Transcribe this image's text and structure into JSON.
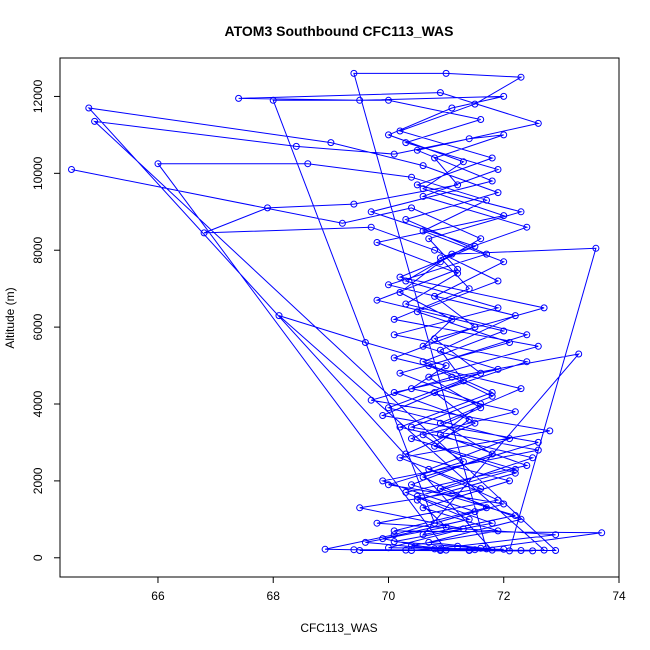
{
  "chart_data": {
    "type": "line",
    "title": "ATOM3 Southbound CFC113_WAS",
    "xlabel": "CFC113_WAS",
    "ylabel": "Altitude (m)",
    "xlim": [
      64.3,
      74.0
    ],
    "ylim": [
      -500,
      13000
    ],
    "xticks": [
      66,
      68,
      70,
      72,
      74
    ],
    "yticks": [
      0,
      2000,
      4000,
      6000,
      8000,
      10000,
      12000
    ],
    "series": [
      {
        "name": "Southbound profile",
        "color": "#0000ff",
        "marker": "open-circle",
        "points": [
          [
            64.5,
            10100
          ],
          [
            69.2,
            8700
          ],
          [
            70.4,
            9100
          ],
          [
            71.6,
            8300
          ],
          [
            70.9,
            7700
          ],
          [
            70.2,
            6900
          ],
          [
            71.1,
            6200
          ],
          [
            70.6,
            5500
          ],
          [
            71.9,
            4900
          ],
          [
            70.1,
            4300
          ],
          [
            71.4,
            3600
          ],
          [
            70.8,
            2900
          ],
          [
            72.2,
            2200
          ],
          [
            70.5,
            1500
          ],
          [
            71.0,
            800
          ],
          [
            69.6,
            400
          ],
          [
            70.9,
            220
          ],
          [
            72.3,
            190
          ],
          [
            71.4,
            200
          ],
          [
            69.4,
            210
          ],
          [
            68.9,
            220
          ],
          [
            70.1,
            600
          ],
          [
            71.5,
            1200
          ],
          [
            69.9,
            2000
          ],
          [
            72.6,
            2800
          ],
          [
            70.4,
            3400
          ],
          [
            71.8,
            4200
          ],
          [
            70.7,
            5000
          ],
          [
            72.4,
            5800
          ],
          [
            70.3,
            6600
          ],
          [
            71.2,
            7400
          ],
          [
            69.8,
            8200
          ],
          [
            72.0,
            8900
          ],
          [
            70.6,
            9600
          ],
          [
            71.3,
            10300
          ],
          [
            70.0,
            11000
          ],
          [
            71.1,
            11700
          ],
          [
            72.0,
            12000
          ],
          [
            69.5,
            11900
          ],
          [
            67.4,
            11950
          ],
          [
            70.9,
            12100
          ],
          [
            72.6,
            11300
          ],
          [
            70.5,
            10600
          ],
          [
            71.8,
            9800
          ],
          [
            69.7,
            9000
          ],
          [
            71.5,
            8100
          ],
          [
            70.2,
            7300
          ],
          [
            72.7,
            6500
          ],
          [
            70.8,
            5700
          ],
          [
            71.6,
            4800
          ],
          [
            70.0,
            3900
          ],
          [
            72.1,
            3100
          ],
          [
            70.7,
            2300
          ],
          [
            71.9,
            1500
          ],
          [
            69.8,
            900
          ],
          [
            72.9,
            600
          ],
          [
            71.2,
            300
          ],
          [
            70.4,
            190
          ],
          [
            72.5,
            180
          ],
          [
            71.8,
            200
          ],
          [
            64.8,
            11700
          ],
          [
            69.0,
            10800
          ],
          [
            70.6,
            10200
          ],
          [
            71.9,
            9500
          ],
          [
            70.3,
            8800
          ],
          [
            71.7,
            7900
          ],
          [
            70.0,
            7100
          ],
          [
            72.2,
            6300
          ],
          [
            70.9,
            5400
          ],
          [
            71.3,
            4600
          ],
          [
            69.9,
            3700
          ],
          [
            72.6,
            3000
          ],
          [
            70.6,
            2100
          ],
          [
            71.7,
            1300
          ],
          [
            70.1,
            700
          ],
          [
            73.7,
            650
          ],
          [
            71.5,
            210
          ],
          [
            70.3,
            200
          ],
          [
            69.5,
            190
          ],
          [
            72.9,
            190
          ],
          [
            64.9,
            11350
          ],
          [
            68.4,
            10700
          ],
          [
            70.1,
            10500
          ],
          [
            71.4,
            10900
          ],
          [
            72.0,
            11000
          ],
          [
            70.8,
            10400
          ],
          [
            71.2,
            9700
          ],
          [
            69.4,
            9200
          ],
          [
            67.9,
            9100
          ],
          [
            66.8,
            8450
          ],
          [
            69.7,
            8600
          ],
          [
            70.8,
            8000
          ],
          [
            71.9,
            7200
          ],
          [
            70.5,
            6400
          ],
          [
            72.1,
            5600
          ],
          [
            70.2,
            4800
          ],
          [
            71.6,
            4000
          ],
          [
            70.9,
            3200
          ],
          [
            72.4,
            2400
          ],
          [
            70.3,
            1700
          ],
          [
            71.4,
            1000
          ],
          [
            69.9,
            500
          ],
          [
            70.8,
            230
          ],
          [
            72.0,
            220
          ],
          [
            71.0,
            200
          ],
          [
            66.0,
            10250
          ],
          [
            68.6,
            10250
          ],
          [
            70.4,
            9900
          ],
          [
            71.7,
            9300
          ],
          [
            70.6,
            8500
          ],
          [
            72.0,
            7700
          ],
          [
            70.8,
            6800
          ],
          [
            71.5,
            6000
          ],
          [
            70.1,
            5200
          ],
          [
            72.3,
            4400
          ],
          [
            70.9,
            3500
          ],
          [
            71.8,
            2700
          ],
          [
            70.4,
            1900
          ],
          [
            72.2,
            1100
          ],
          [
            70.6,
            600
          ],
          [
            73.3,
            5300
          ],
          [
            71.1,
            4700
          ],
          [
            69.7,
            4100
          ],
          [
            72.8,
            3300
          ],
          [
            70.2,
            2600
          ],
          [
            71.6,
            1800
          ],
          [
            69.5,
            1300
          ],
          [
            71.3,
            750
          ],
          [
            70.0,
            260
          ],
          [
            71.7,
            230
          ],
          [
            69.4,
            12600
          ],
          [
            71.0,
            12600
          ],
          [
            72.3,
            12500
          ],
          [
            71.5,
            11800
          ],
          [
            70.2,
            11100
          ],
          [
            71.8,
            10400
          ],
          [
            70.5,
            9700
          ],
          [
            72.3,
            9000
          ],
          [
            70.7,
            8300
          ],
          [
            71.2,
            7500
          ],
          [
            69.8,
            6700
          ],
          [
            72.0,
            5900
          ],
          [
            70.6,
            5100
          ],
          [
            71.8,
            4300
          ],
          [
            70.2,
            3400
          ],
          [
            72.5,
            2600
          ],
          [
            70.9,
            1800
          ],
          [
            72.3,
            1000
          ],
          [
            70.7,
            400
          ],
          [
            72.1,
            180
          ],
          [
            73.6,
            8050
          ],
          [
            71.1,
            7900
          ],
          [
            70.3,
            7200
          ],
          [
            71.9,
            6500
          ],
          [
            70.1,
            5800
          ],
          [
            72.4,
            5100
          ],
          [
            70.8,
            4300
          ],
          [
            71.5,
            3500
          ],
          [
            70.3,
            2700
          ],
          [
            72.1,
            2000
          ],
          [
            70.6,
            1300
          ],
          [
            71.9,
            700
          ],
          [
            70.4,
            320
          ],
          [
            71.4,
            190
          ],
          [
            72.7,
            200
          ],
          [
            68.1,
            6300
          ],
          [
            69.6,
            5600
          ],
          [
            71.0,
            5000
          ],
          [
            70.4,
            4400
          ],
          [
            72.2,
            3800
          ],
          [
            70.6,
            3200
          ],
          [
            71.3,
            2500
          ],
          [
            70.0,
            1900
          ],
          [
            72.0,
            1400
          ],
          [
            70.8,
            900
          ],
          [
            68.0,
            11900
          ],
          [
            70.0,
            11900
          ],
          [
            71.6,
            11400
          ],
          [
            70.3,
            10800
          ],
          [
            71.9,
            10100
          ],
          [
            70.6,
            9400
          ],
          [
            72.4,
            8600
          ],
          [
            70.9,
            7800
          ],
          [
            71.4,
            7000
          ],
          [
            70.1,
            6200
          ],
          [
            72.6,
            5500
          ],
          [
            70.7,
            4700
          ],
          [
            71.6,
            3900
          ],
          [
            70.4,
            3100
          ],
          [
            72.2,
            2300
          ],
          [
            70.5,
            1600
          ],
          [
            71.8,
            900
          ],
          [
            70.1,
            420
          ],
          [
            71.6,
            250
          ],
          [
            70.9,
            190
          ]
        ]
      }
    ]
  }
}
